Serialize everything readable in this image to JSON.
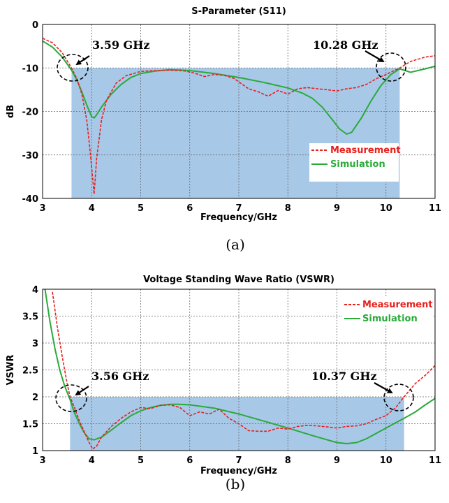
{
  "chart_data": [
    {
      "type": "line",
      "title": "S-Parameter (S11)",
      "xlabel": "Frequency/GHz",
      "ylabel": "dB",
      "xlim": [
        3,
        11
      ],
      "ylim": [
        -40,
        0
      ],
      "xticks": [
        "3",
        "4",
        "5",
        "6",
        "7",
        "8",
        "9",
        "10",
        "11"
      ],
      "yticks": [
        "0",
        "-10",
        "-20",
        "-30",
        "-40"
      ],
      "grid": true,
      "legend_position": "bottom-right",
      "caption": "(a)",
      "band": {
        "x": [
          3.59,
          10.28
        ],
        "y": [
          -40,
          -10
        ],
        "color": "#a8c8e8"
      },
      "annotations": [
        {
          "text": "3.59 GHz",
          "x": 3.59,
          "y": -10
        },
        {
          "text": "10.28 GHz",
          "x": 10.28,
          "y": -10
        }
      ],
      "series": [
        {
          "name": "Measurement",
          "color": "#e8201c",
          "style": "dashed",
          "x": [
            3,
            3.2,
            3.4,
            3.59,
            3.7,
            3.8,
            3.9,
            3.95,
            4.0,
            4.05,
            4.1,
            4.2,
            4.3,
            4.5,
            4.7,
            5.0,
            5.3,
            5.6,
            5.9,
            6.1,
            6.3,
            6.5,
            6.7,
            6.9,
            7.0,
            7.2,
            7.4,
            7.6,
            7.8,
            8.0,
            8.2,
            8.4,
            8.6,
            8.8,
            9.0,
            9.2,
            9.4,
            9.6,
            9.8,
            10.0,
            10.28,
            10.5,
            10.8,
            11
          ],
          "y": [
            -3.2,
            -4.2,
            -6.5,
            -10,
            -12.5,
            -16,
            -22,
            -27,
            -33,
            -39,
            -31,
            -22,
            -17.5,
            -13.5,
            -11.8,
            -10.8,
            -10.6,
            -10.5,
            -10.7,
            -11.2,
            -12,
            -11.5,
            -11.7,
            -12.4,
            -13.2,
            -14.8,
            -15.5,
            -16.5,
            -15.2,
            -16,
            -14.8,
            -14.5,
            -14.8,
            -15,
            -15.3,
            -14.8,
            -14.5,
            -13.8,
            -12.5,
            -11.5,
            -10,
            -8.5,
            -7.5,
            -7.2
          ]
        },
        {
          "name": "Simulation",
          "color": "#2aaa3a",
          "style": "solid",
          "x": [
            3,
            3.2,
            3.4,
            3.59,
            3.7,
            3.8,
            3.9,
            4.0,
            4.05,
            4.1,
            4.2,
            4.4,
            4.6,
            4.8,
            5.0,
            5.3,
            5.6,
            6.0,
            6.5,
            7.0,
            7.5,
            8.0,
            8.3,
            8.5,
            8.7,
            8.9,
            9.05,
            9.2,
            9.3,
            9.5,
            9.7,
            9.9,
            10.1,
            10.28,
            10.5,
            10.8,
            11
          ],
          "y": [
            -3.8,
            -5.2,
            -7.5,
            -10.5,
            -12.8,
            -15.5,
            -18.5,
            -21.2,
            -21.5,
            -20.8,
            -19,
            -16,
            -13.8,
            -12.2,
            -11.3,
            -10.7,
            -10.4,
            -10.6,
            -11.3,
            -12.2,
            -13.3,
            -14.6,
            -15.8,
            -17,
            -19,
            -21.8,
            -24,
            -25.2,
            -24.8,
            -21.5,
            -17.5,
            -14,
            -11.5,
            -10.2,
            -11,
            -10.2,
            -9.6
          ]
        }
      ]
    },
    {
      "type": "line",
      "title": "Voltage Standing Wave Ratio (VSWR)",
      "xlabel": "Frequency/GHz",
      "ylabel": "VSWR",
      "xlim": [
        3,
        11
      ],
      "ylim": [
        1,
        4
      ],
      "xticks": [
        "3",
        "4",
        "5",
        "6",
        "7",
        "8",
        "9",
        "10",
        "11"
      ],
      "yticks": [
        "4",
        "3.5",
        "3",
        "2.5",
        "2",
        "1.5",
        "1"
      ],
      "grid": true,
      "legend_position": "top-right",
      "caption": "(b)",
      "band": {
        "x": [
          3.56,
          10.37
        ],
        "y": [
          1,
          2
        ],
        "color": "#a8c8e8"
      },
      "annotations": [
        {
          "text": "3.56 GHz",
          "x": 3.56,
          "y": 2
        },
        {
          "text": "10.37 GHz",
          "x": 10.37,
          "y": 2
        }
      ],
      "series": [
        {
          "name": "Measurement",
          "color": "#e8201c",
          "style": "dashed",
          "x": [
            3.2,
            3.3,
            3.4,
            3.5,
            3.56,
            3.65,
            3.75,
            3.85,
            3.95,
            4.02,
            4.1,
            4.2,
            4.4,
            4.6,
            4.8,
            5.0,
            5.2,
            5.4,
            5.6,
            5.8,
            6.0,
            6.2,
            6.4,
            6.6,
            6.8,
            7.0,
            7.2,
            7.4,
            7.6,
            7.8,
            8.0,
            8.2,
            8.4,
            8.6,
            8.8,
            9.0,
            9.2,
            9.4,
            9.6,
            9.8,
            10.0,
            10.2,
            10.37,
            10.6,
            10.8,
            11
          ],
          "y": [
            3.95,
            3.3,
            2.75,
            2.25,
            2.0,
            1.8,
            1.55,
            1.35,
            1.15,
            1.03,
            1.08,
            1.25,
            1.45,
            1.6,
            1.72,
            1.8,
            1.78,
            1.84,
            1.85,
            1.8,
            1.65,
            1.72,
            1.68,
            1.77,
            1.6,
            1.5,
            1.37,
            1.36,
            1.36,
            1.42,
            1.4,
            1.45,
            1.47,
            1.46,
            1.44,
            1.42,
            1.45,
            1.46,
            1.5,
            1.58,
            1.65,
            1.8,
            2.0,
            2.25,
            2.4,
            2.58
          ]
        },
        {
          "name": "Simulation",
          "color": "#2aaa3a",
          "style": "solid",
          "x": [
            3.05,
            3.15,
            3.25,
            3.35,
            3.45,
            3.56,
            3.65,
            3.75,
            3.85,
            3.95,
            4.05,
            4.2,
            4.4,
            4.6,
            4.8,
            5.0,
            5.2,
            5.4,
            5.6,
            5.8,
            6.0,
            6.5,
            7.0,
            7.5,
            8.0,
            8.5,
            8.8,
            9.0,
            9.2,
            9.4,
            9.6,
            9.8,
            10.0,
            10.2,
            10.37,
            10.6,
            10.8,
            11
          ],
          "y": [
            4.0,
            3.4,
            2.9,
            2.5,
            2.2,
            1.95,
            1.7,
            1.5,
            1.33,
            1.22,
            1.2,
            1.25,
            1.38,
            1.52,
            1.65,
            1.74,
            1.8,
            1.84,
            1.86,
            1.86,
            1.85,
            1.79,
            1.68,
            1.55,
            1.42,
            1.28,
            1.2,
            1.15,
            1.13,
            1.15,
            1.22,
            1.32,
            1.42,
            1.52,
            1.6,
            1.72,
            1.85,
            1.97
          ]
        }
      ]
    }
  ]
}
